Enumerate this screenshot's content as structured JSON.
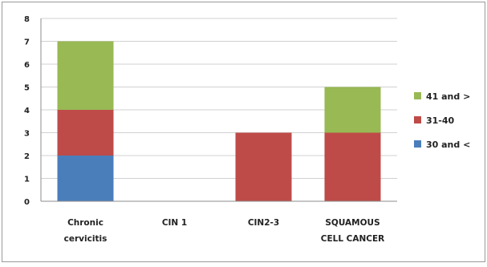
{
  "chart_data": {
    "type": "bar",
    "stacked": true,
    "categories": [
      [
        "Chronic",
        "cervicitis"
      ],
      [
        "CIN 1"
      ],
      [
        "CIN2-3"
      ],
      [
        "SQUAMOUS",
        "CELL CANCER"
      ]
    ],
    "series": [
      {
        "name": "30 and <",
        "color": "#4a7ebb",
        "values": [
          2,
          0,
          0,
          0
        ]
      },
      {
        "name": "31-40",
        "color": "#be4b48",
        "values": [
          2,
          0,
          3,
          3
        ]
      },
      {
        "name": "41 and >",
        "color": "#98b954",
        "values": [
          3,
          0,
          0,
          2
        ]
      }
    ],
    "legend_order": [
      "41 and >",
      "31-40",
      "30 and <"
    ],
    "ylim": [
      0,
      8
    ],
    "yticks": [
      0,
      1,
      2,
      3,
      4,
      5,
      6,
      7,
      8
    ],
    "grid": true,
    "legend_position": "right"
  }
}
